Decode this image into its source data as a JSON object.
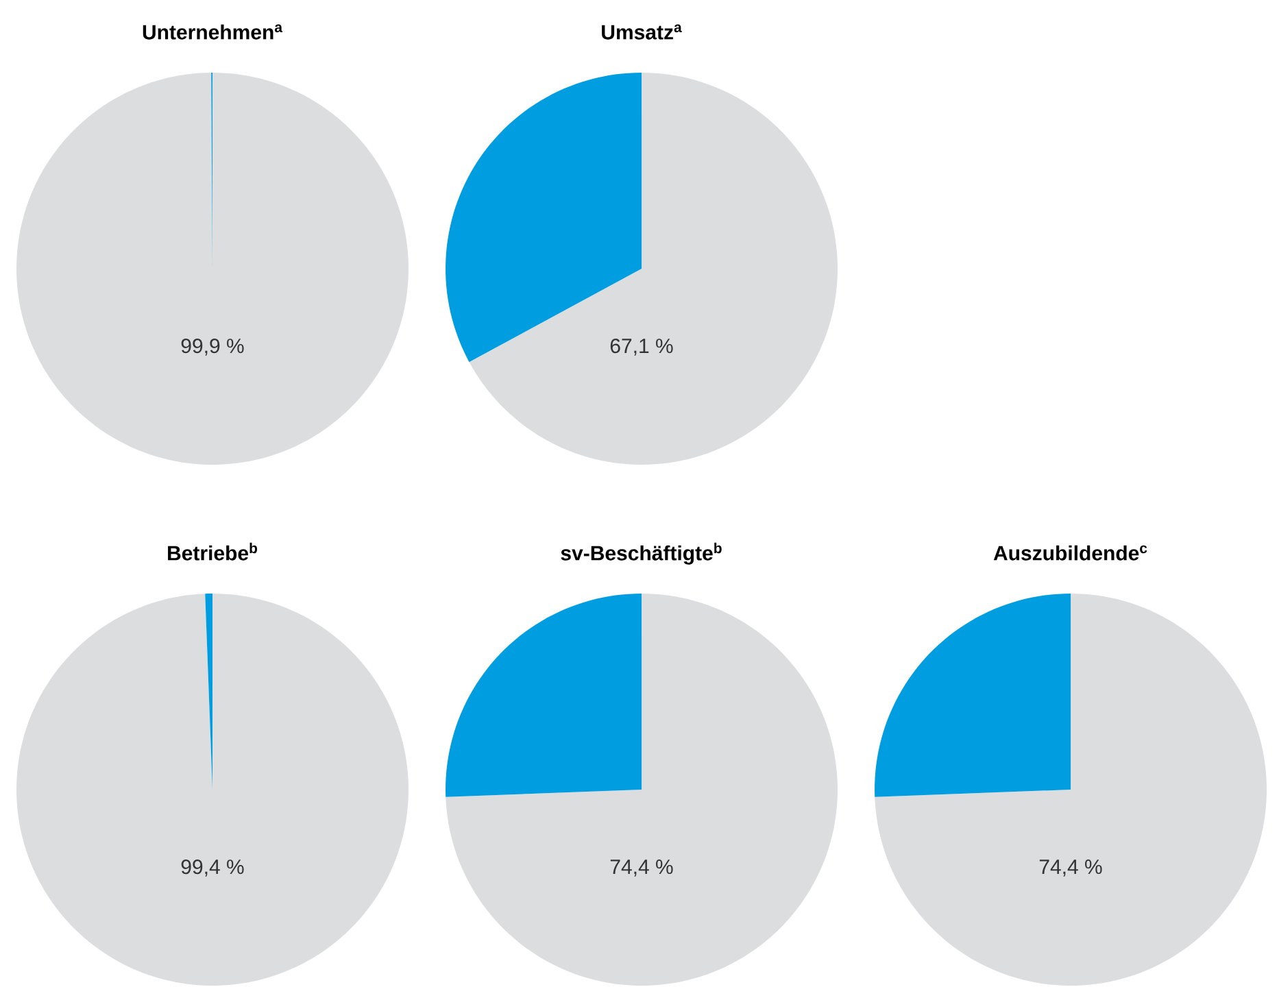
{
  "chart_data": [
    {
      "type": "pie",
      "title": "Unternehmen$^{a}$",
      "categories": [
        null,
        null
      ],
      "values": [
        99.9,
        0.1
      ],
      "colors": [
        "#dcdddf",
        "#009ee0"
      ],
      "value_labels": [
        "99,9 %",
        null
      ]
    },
    {
      "type": "pie",
      "title": "Umsatz$^{a}$",
      "categories": [
        null,
        null
      ],
      "values": [
        67.1,
        32.9
      ],
      "colors": [
        "#dcdddf",
        "#009ee0"
      ],
      "value_labels": [
        "67,1 %",
        null
      ]
    },
    {
      "type": "pie",
      "title": "Betriebe$^{b}$",
      "categories": [
        null,
        null
      ],
      "values": [
        99.4,
        0.6
      ],
      "colors": [
        "#dcdddf",
        "#009ee0"
      ],
      "value_labels": [
        "99,4 %",
        null
      ]
    },
    {
      "type": "pie",
      "title": "sv-Beschäftigte$^{b}$",
      "categories": [
        null,
        null
      ],
      "values": [
        74.4,
        25.6
      ],
      "colors": [
        "#dcdddf",
        "#009ee0"
      ],
      "value_labels": [
        "74,4 %",
        null
      ]
    },
    {
      "type": "pie",
      "title": "Auszubildende$^{c}$",
      "categories": [
        null,
        null
      ],
      "values": [
        74.4,
        25.6
      ],
      "colors": [
        "#dcdddf",
        "#009ee0"
      ],
      "value_labels": [
        "74,4 %",
        null
      ]
    }
  ]
}
